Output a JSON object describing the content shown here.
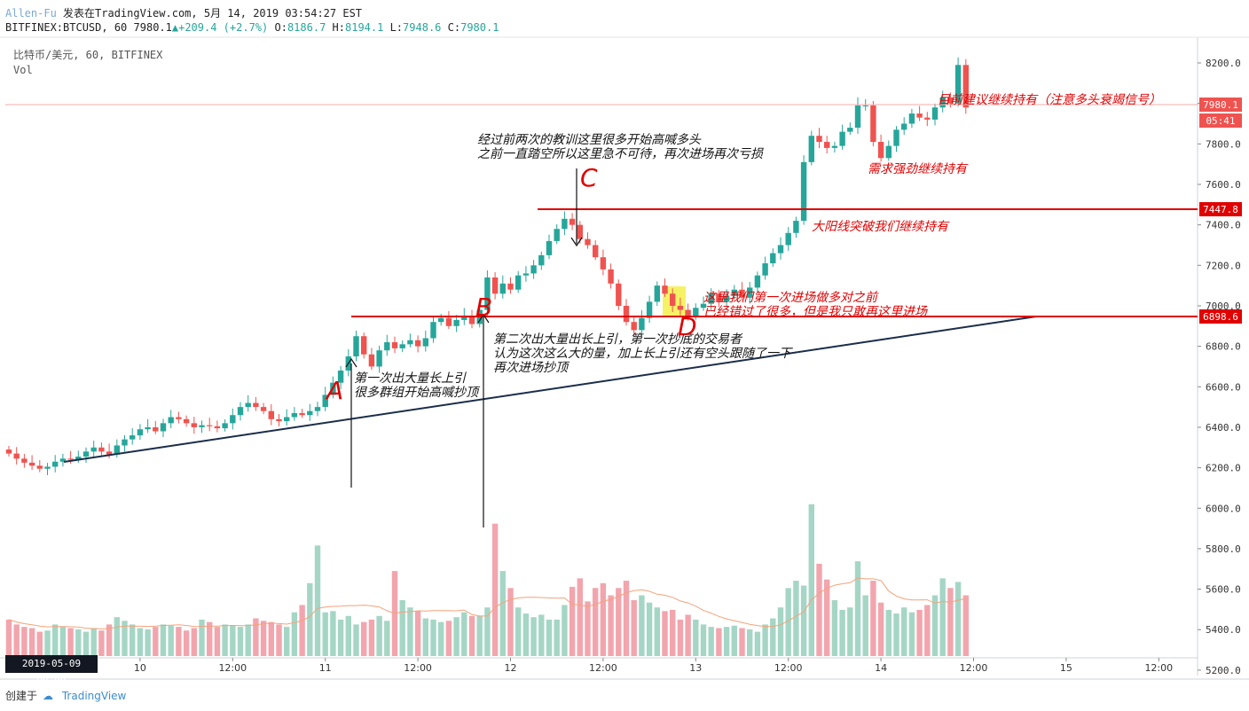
{
  "header": {
    "author": "Allen-Fu",
    "published": "发表在TradingView.com, 5月 14, 2019 03:54:27 EST",
    "ticker": "BITFINEX:BTCUSD, 60",
    "last": "7980.1",
    "change": "+209.4 (+2.7%)",
    "open": "8186.7",
    "high": "8194.1",
    "low": "7948.6",
    "close": "7980.1"
  },
  "symbol_label": "比特币/美元, 60, BITFINEX",
  "volume_label": "Vol",
  "footer": {
    "created_by": "创建于",
    "brand": "TradingView"
  },
  "date_flag": "2019-05-09   00:00",
  "colors": {
    "up": "#26a69a",
    "down": "#ef5350",
    "up_vol": "#a5d6c5",
    "down_vol": "#f2a5ad",
    "annot": "#e00000",
    "trend": "#1a2d4a",
    "highlight": "#f5f04a"
  },
  "chart_data": {
    "type": "candlestick",
    "title": "",
    "ylim": [
      5150,
      8300
    ],
    "price_axis_ticks": [
      "8200.0",
      "8000.0",
      "7800.0",
      "7600.0",
      "7400.0",
      "7200.0",
      "7000.0",
      "6800.0",
      "6600.0",
      "6400.0",
      "6200.0",
      "6000.0",
      "5800.0",
      "5600.0",
      "5400.0",
      "5200.0"
    ],
    "price_axis_values": [
      8200,
      8000,
      7800,
      7600,
      7400,
      7200,
      7000,
      6800,
      6600,
      6400,
      6200,
      6000,
      5800,
      5600,
      5400,
      5200
    ],
    "time_axis": [
      {
        "label": "10",
        "bar": 17
      },
      {
        "label": "12:00",
        "bar": 29
      },
      {
        "label": "11",
        "bar": 41
      },
      {
        "label": "12:00",
        "bar": 53
      },
      {
        "label": "12",
        "bar": 65
      },
      {
        "label": "12:00",
        "bar": 77
      },
      {
        "label": "13",
        "bar": 89
      },
      {
        "label": "12:00",
        "bar": 101
      },
      {
        "label": "14",
        "bar": 113
      },
      {
        "label": "12:00",
        "bar": 125
      },
      {
        "label": "15",
        "bar": 137
      },
      {
        "label": "12:00",
        "bar": 149
      }
    ],
    "bar_spacing_note": "hourly bars",
    "price_labels": [
      {
        "text": "7980.1",
        "value": 7980.1
      },
      {
        "text": "05:41",
        "value": 7905
      },
      {
        "text": "7447.8",
        "value": 7447.8
      },
      {
        "text": "6898.6",
        "value": 6898.6
      }
    ],
    "closes": [
      6270,
      6245,
      6225,
      6210,
      6195,
      6205,
      6230,
      6245,
      6240,
      6255,
      6280,
      6300,
      6280,
      6265,
      6310,
      6340,
      6360,
      6390,
      6400,
      6380,
      6420,
      6450,
      6440,
      6420,
      6400,
      6410,
      6405,
      6395,
      6420,
      6460,
      6500,
      6520,
      6500,
      6480,
      6440,
      6430,
      6450,
      6470,
      6460,
      6480,
      6500,
      6560,
      6620,
      6680,
      6750,
      6850,
      6760,
      6700,
      6780,
      6820,
      6790,
      6810,
      6830,
      6800,
      6840,
      6920,
      6940,
      6900,
      6930,
      6950,
      6910,
      6980,
      7140,
      7060,
      7110,
      7080,
      7150,
      7160,
      7200,
      7250,
      7320,
      7380,
      7430,
      7400,
      7330,
      7300,
      7240,
      7180,
      7110,
      7000,
      6920,
      6880,
      6940,
      7020,
      7100,
      7060,
      7000,
      6980,
      6950,
      6990,
      7010,
      7060,
      7020,
      7050,
      7080,
      7040,
      7090,
      7150,
      7210,
      7260,
      7300,
      7360,
      7420,
      7710,
      7840,
      7810,
      7780,
      7790,
      7860,
      7880,
      7990,
      7990,
      7810,
      7730,
      7790,
      7870,
      7900,
      7950,
      7930,
      7920,
      7980,
      8030,
      8000,
      8190,
      7980
    ],
    "volumes": [
      300,
      260,
      240,
      230,
      200,
      210,
      260,
      240,
      230,
      220,
      200,
      230,
      210,
      260,
      320,
      290,
      260,
      230,
      220,
      240,
      260,
      250,
      240,
      210,
      230,
      300,
      280,
      240,
      260,
      250,
      240,
      260,
      310,
      290,
      280,
      260,
      240,
      360,
      420,
      600,
      910,
      360,
      370,
      300,
      330,
      260,
      280,
      300,
      330,
      290,
      700,
      460,
      400,
      370,
      310,
      300,
      280,
      290,
      320,
      360,
      330,
      330,
      400,
      1090,
      700,
      560,
      400,
      350,
      320,
      340,
      300,
      300,
      420,
      570,
      640,
      450,
      560,
      600,
      500,
      560,
      620,
      460,
      500,
      440,
      400,
      370,
      380,
      300,
      340,
      300,
      260,
      240,
      230,
      240,
      250,
      230,
      220,
      200,
      260,
      310,
      400,
      560,
      620,
      580,
      1250,
      760,
      630,
      460,
      380,
      400,
      780,
      500,
      620,
      440,
      380,
      350,
      400,
      360,
      380,
      420,
      500,
      640,
      560,
      610,
      500
    ]
  },
  "annotations": {
    "A_label": "A",
    "A_text1": "第一次出大量长上引",
    "A_text2": "很多群组开始高喊抄顶",
    "B_label": "B",
    "B_text1": "第二次出大量出长上引，第一次抄底的交易者",
    "B_text2": "认为这次这么大的量，加上长上引还有空头跟随了一下",
    "B_text3": "再次进场抄顶",
    "C_label": "C",
    "C_text1": "经过前两次的教训这里很多开始高喊多头",
    "C_text2": "之前一直踏空所以这里急不可待，再次进场再次亏损",
    "D_label": "D",
    "D_text1": "这里我们第一次进场做多对之前",
    "D_text2": "已经错过了很多，但是我只敢再这里进场",
    "breakout_text": "大阳线突破我们继续持有",
    "demand_text": "需求强劲继续持有",
    "hold_text": "目前建议继续持有（注意多头衰竭信号）"
  }
}
